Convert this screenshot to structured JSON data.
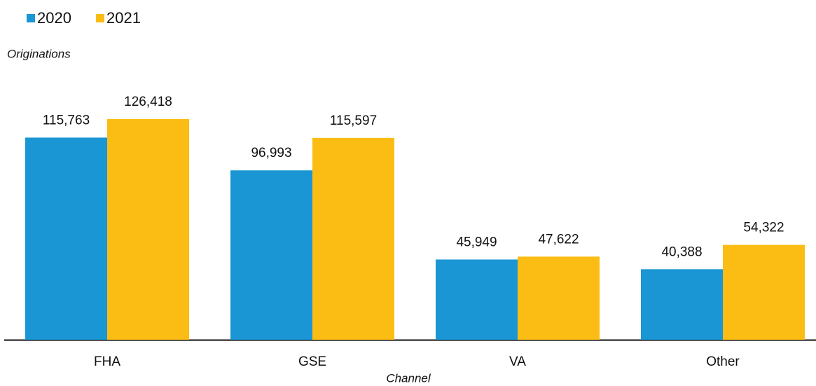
{
  "chart_data": {
    "type": "bar",
    "y_label": "Originations",
    "x_label": "Channel",
    "categories": [
      "FHA",
      "GSE",
      "VA",
      "Other"
    ],
    "series": [
      {
        "name": "2020",
        "color": "#1a96d4",
        "values": [
          115763,
          96993,
          45949,
          40388
        ],
        "value_labels": [
          "115,763",
          "96,993",
          "45,949",
          "40,388"
        ]
      },
      {
        "name": "2021",
        "color": "#fbbd14",
        "values": [
          126418,
          115597,
          47622,
          54322
        ],
        "value_labels": [
          "126,418",
          "115,597",
          "47,622",
          "54,322"
        ]
      }
    ],
    "ylim": [
      0,
      140000
    ]
  }
}
